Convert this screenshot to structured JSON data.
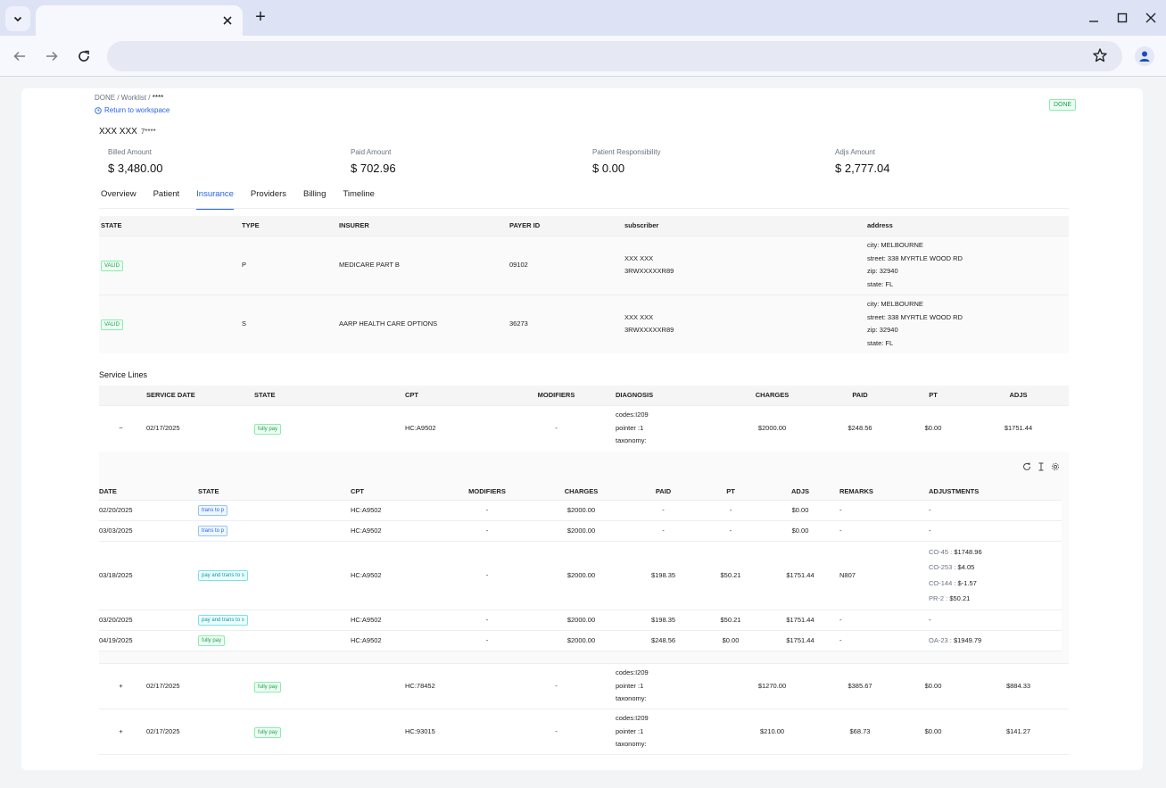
{
  "browser": {
    "tab_title": "",
    "new_tab": "+",
    "address": ""
  },
  "page": {
    "breadcrumb": {
      "prefix": "DONE / Worklist / ",
      "current": "****"
    },
    "back_link": "Return to workspace",
    "status_badge": "DONE",
    "patient": {
      "name": "XXX XXX",
      "id": "7****"
    },
    "stats": [
      {
        "label": "Billed Amount",
        "value": "$ 3,480.00"
      },
      {
        "label": "Paid Amount",
        "value": "$ 702.96"
      },
      {
        "label": "Patient Responsibility",
        "value": "$ 0.00"
      },
      {
        "label": "Adjs Amount",
        "value": "$ 2,777.04"
      }
    ],
    "tabs": [
      {
        "label": "Overview"
      },
      {
        "label": "Patient"
      },
      {
        "label": "Insurance",
        "active": true
      },
      {
        "label": "Providers"
      },
      {
        "label": "Billing"
      },
      {
        "label": "Timeline"
      }
    ]
  },
  "insurance": {
    "headers": [
      "STATE",
      "TYPE",
      "INSURER",
      "PAYER ID",
      "subscriber",
      "address"
    ],
    "rows": [
      {
        "state": "VALID",
        "type": "P",
        "insurer": "MEDICARE PART B",
        "payer_id": "09102",
        "subscriber_name": "XXX XXX",
        "subscriber_id": "3RWXXXXXR89",
        "city": "city: MELBOURNE",
        "street": "street: 338 MYRTLE WOOD RD",
        "zip": "zip: 32940",
        "state_addr": "state: FL"
      },
      {
        "state": "VALID",
        "type": "S",
        "insurer": "AARP HEALTH CARE OPTIONS",
        "payer_id": "36273",
        "subscriber_name": "XXX XXX",
        "subscriber_id": "3RWXXXXXR89",
        "city": "city: MELBOURNE",
        "street": "street: 338 MYRTLE WOOD RD",
        "zip": "zip: 32940",
        "state_addr": "state: FL"
      }
    ]
  },
  "service_lines": {
    "title": "Service Lines",
    "headers": [
      "SERVICE DATE",
      "STATE",
      "CPT",
      "MODIFIERS",
      "DIAGNOSIS",
      "CHARGES",
      "PAID",
      "PT",
      "ADJS"
    ],
    "lines": [
      {
        "toggle": "−",
        "date": "02/17/2025",
        "state": "fully pay",
        "cpt": "HC:A9502",
        "modifiers": "-",
        "codes": "codes:I209",
        "pointer": "pointer :1",
        "taxonomy": "taxonomy:",
        "charges": "$2000.00",
        "paid": "$248.56",
        "pt": "$0.00",
        "adjs": "$1751.44"
      },
      {
        "toggle": "+",
        "date": "02/17/2025",
        "state": "fully pay",
        "cpt": "HC:78452",
        "modifiers": "-",
        "codes": "codes:I209",
        "pointer": "pointer :1",
        "taxonomy": "taxonomy:",
        "charges": "$1270.00",
        "paid": "$385.67",
        "pt": "$0.00",
        "adjs": "$884.33"
      },
      {
        "toggle": "+",
        "date": "02/17/2025",
        "state": "fully pay",
        "cpt": "HC:93015",
        "modifiers": "-",
        "codes": "codes:I209",
        "pointer": "pointer :1",
        "taxonomy": "taxonomy:",
        "charges": "$210.00",
        "paid": "$68.73",
        "pt": "$0.00",
        "adjs": "$141.27"
      }
    ]
  },
  "claim_history": {
    "headers": [
      "DATE",
      "STATE",
      "CPT",
      "MODIFIERS",
      "CHARGES",
      "PAID",
      "PT",
      "ADJS",
      "REMARKS",
      "ADJUSTMENTS"
    ],
    "rows": [
      {
        "date": "02/20/2025",
        "state": "trans to p",
        "cpt": "HC:A9502",
        "modifiers": "-",
        "charges": "$2000.00",
        "paid": "-",
        "pt": "-",
        "adjs": "$0.00",
        "remarks": "-",
        "adjustments": "-"
      },
      {
        "date": "03/03/2025",
        "state": "trans to p",
        "cpt": "HC:A9502",
        "modifiers": "-",
        "charges": "$2000.00",
        "paid": "-",
        "pt": "-",
        "adjs": "$0.00",
        "remarks": "-",
        "adjustments": "-"
      },
      {
        "date": "03/18/2025",
        "state": "pay and trans to s",
        "cpt": "HC:A9502",
        "modifiers": "-",
        "charges": "$2000.00",
        "paid": "$198.35",
        "pt": "$50.21",
        "adjs": "$1751.44",
        "remarks": "N807",
        "adj_list": [
          {
            "code": "CO-45 : ",
            "amount": "$1748.96"
          },
          {
            "code": "CO-253 : ",
            "amount": "$4.05"
          },
          {
            "code": "CO-144 : ",
            "amount": "$-1.57"
          },
          {
            "code": "PR-2 : ",
            "amount": "$50.21"
          }
        ]
      },
      {
        "date": "03/20/2025",
        "state": "pay and trans to s",
        "cpt": "HC:A9502",
        "modifiers": "-",
        "charges": "$2000.00",
        "paid": "$198.35",
        "pt": "$50.21",
        "adjs": "$1751.44",
        "remarks": "-",
        "adjustments": "-"
      },
      {
        "date": "04/19/2025",
        "state": "fully pay",
        "cpt": "HC:A9502",
        "modifiers": "-",
        "charges": "$2000.00",
        "paid": "$248.56",
        "pt": "$0.00",
        "adjs": "$1751.44",
        "remarks": "-",
        "adj_code": "OA-23 : ",
        "adj_amount": "$1949.79"
      }
    ]
  },
  "icons": [
    "chevron-down-icon",
    "close-icon",
    "minimize-icon",
    "maximize-icon",
    "back-arrow-icon",
    "forward-arrow-icon",
    "reload-icon",
    "star-icon",
    "profile-icon",
    "clock-icon",
    "refresh-icon",
    "column-height-icon",
    "settings-icon"
  ],
  "colors": {
    "accent": "#2563eb",
    "valid_green": "#16a34a",
    "chrome": "#dde3f4"
  }
}
